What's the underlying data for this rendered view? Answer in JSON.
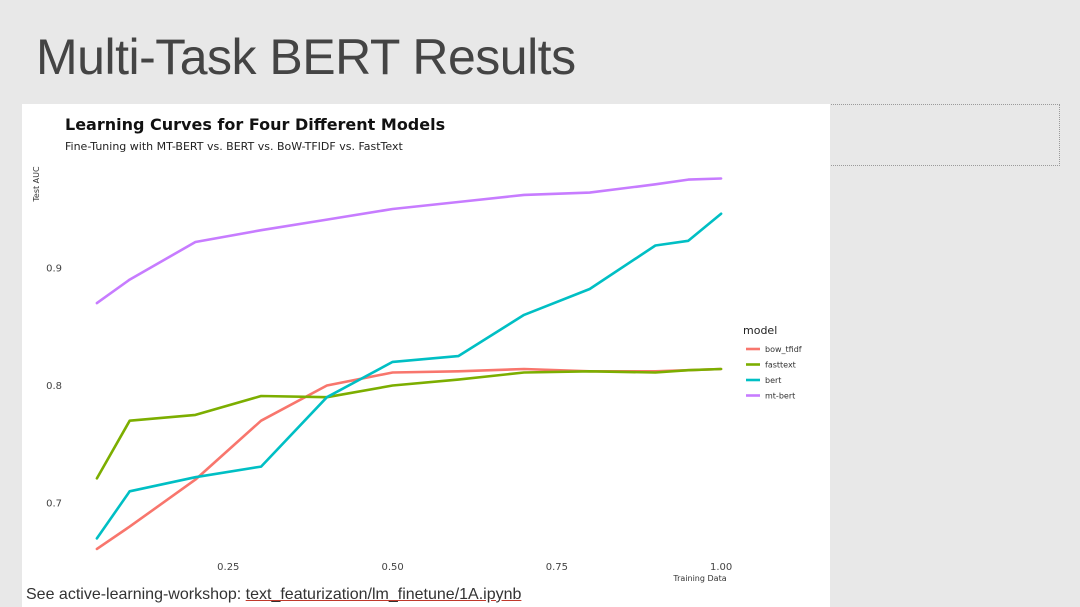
{
  "slide": {
    "title": "Multi-Task BERT Results",
    "footer_prefix": "See active-learning-workshop: ",
    "footer_link": "text_featurization/lm_finetune/1A.ipynb"
  },
  "chart_data": {
    "type": "line",
    "title": "Learning Curves for Four Different Models",
    "subtitle": "Fine-Tuning with MT-BERT vs. BERT vs. BoW-TFIDF vs. FastText",
    "xlabel": "Training Data",
    "ylabel": "Test AUC",
    "xlim": [
      0.0,
      1.05
    ],
    "ylim": [
      0.655,
      0.99
    ],
    "xticks": [
      0.25,
      0.5,
      0.75,
      1.0
    ],
    "xtick_labels": [
      "0.25",
      "0.50",
      "0.75",
      "1.00"
    ],
    "yticks": [
      0.7,
      0.8,
      0.9
    ],
    "ytick_labels": [
      "0.7",
      "0.8",
      "0.9"
    ],
    "grid": false,
    "legend": {
      "title": "model",
      "position": "right"
    },
    "x": [
      0.05,
      0.1,
      0.2,
      0.3,
      0.4,
      0.5,
      0.6,
      0.7,
      0.8,
      0.9,
      0.95,
      1.0
    ],
    "series": [
      {
        "name": "bow_tfidf",
        "color": "#f8766d",
        "values": [
          0.661,
          0.68,
          0.72,
          0.77,
          0.8,
          0.811,
          0.812,
          0.814,
          0.812,
          0.812,
          0.813,
          0.814
        ]
      },
      {
        "name": "fasttext",
        "color": "#7cae00",
        "values": [
          0.721,
          0.77,
          0.775,
          0.791,
          0.79,
          0.8,
          0.805,
          0.811,
          0.812,
          0.811,
          0.813,
          0.814
        ]
      },
      {
        "name": "bert",
        "color": "#00bfc4",
        "values": [
          0.67,
          0.71,
          0.722,
          0.731,
          0.79,
          0.82,
          0.825,
          0.86,
          0.882,
          0.919,
          0.923,
          0.946
        ]
      },
      {
        "name": "mt-bert",
        "color": "#c77cff",
        "values": [
          0.87,
          0.89,
          0.922,
          0.932,
          0.941,
          0.95,
          0.956,
          0.962,
          0.964,
          0.971,
          0.975,
          0.976
        ]
      }
    ]
  }
}
